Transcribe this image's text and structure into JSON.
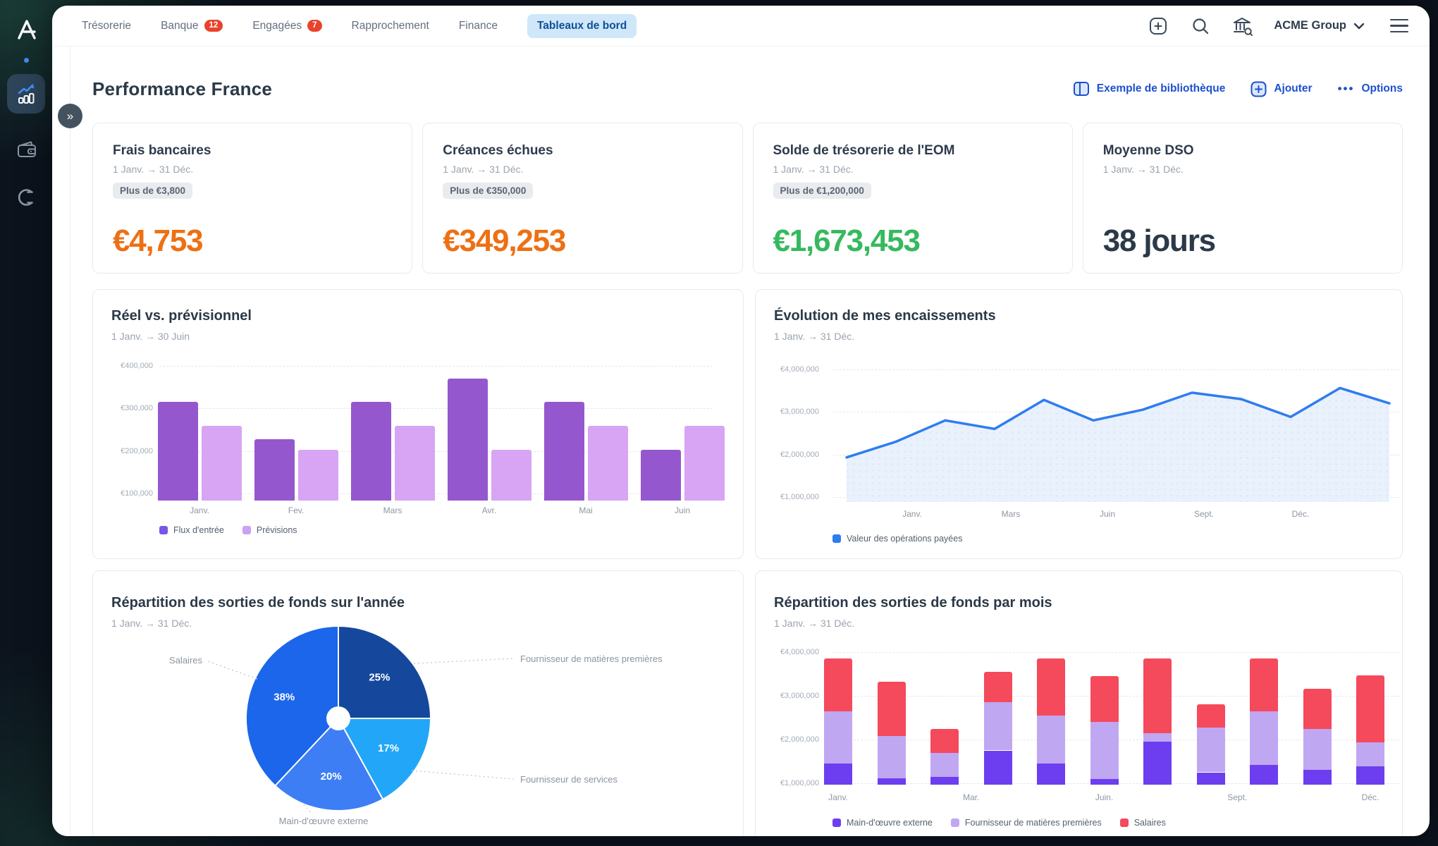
{
  "app": {
    "logo_letter": "A",
    "workspace": "ACME Group",
    "nav_items": [
      {
        "label": "Trésorerie",
        "badge": null,
        "active": false
      },
      {
        "label": "Banque",
        "badge": "12",
        "active": false
      },
      {
        "label": "Engagées",
        "badge": "7",
        "active": false
      },
      {
        "label": "Rapprochement",
        "badge": null,
        "active": false
      },
      {
        "label": "Finance",
        "badge": null,
        "active": false
      },
      {
        "label": "Tableaux de bord",
        "badge": null,
        "active": true
      }
    ]
  },
  "header": {
    "title": "Performance France",
    "library_button": "Exemple de bibliothèque",
    "add_button": "Ajouter",
    "options_button": "Options",
    "collapse_glyph": "»",
    "accent_blue": "#1d50cf"
  },
  "kpis": [
    {
      "title": "Frais bancaires",
      "period": "1 Janv. → 31 Déc.",
      "target": "Plus de €3,800",
      "value": "€4,753",
      "color": "#ed7014"
    },
    {
      "title": "Créances échues",
      "period": "1 Janv. → 31 Déc.",
      "target": "Plus de €350,000",
      "value": "€349,253",
      "color": "#ed7014"
    },
    {
      "title": "Solde de trésorerie de l'EOM",
      "period": "1 Janv. → 31 Déc.",
      "target": "Plus de €1,200,000",
      "value": "€1,673,453",
      "color": "#36b95e"
    },
    {
      "title": "Moyenne DSO",
      "period": "1 Janv. → 31 Déc.",
      "target": null,
      "value": "38 jours",
      "color": "#2b3949"
    }
  ],
  "chart_data": [
    {
      "id": "reel_vs_previsionnel",
      "type": "bar",
      "title": "Réel vs. prévisionnel",
      "period": "1 Janv.  → 30 Juin",
      "categories": [
        "Janv.",
        "Fev.",
        "Mars",
        "Avr.",
        "Mai",
        "Juin"
      ],
      "series": [
        {
          "name": "Flux d'entrée",
          "color": "#9557ce",
          "legend_color": "#7a55e8",
          "values": [
            315000,
            228000,
            315000,
            371000,
            315000,
            203000
          ]
        },
        {
          "name": "Prévisions",
          "color": "#d7a5f4",
          "legend_color": "#c9a2f2",
          "values": [
            260000,
            202000,
            260000,
            202000,
            260000,
            260000
          ]
        }
      ],
      "yticks": [
        100000,
        200000,
        300000,
        400000
      ],
      "ytick_labels": [
        "€100,000",
        "€200,000",
        "€300,000",
        "€400,000"
      ],
      "ylim": [
        83000,
        415000
      ],
      "grid": true,
      "legend_position": "bottom"
    },
    {
      "id": "evolution_encaissements",
      "type": "area",
      "title": "Évolution de mes encaissements",
      "period": "1 Janv. → 31 Déc.",
      "x_labels": [
        "Janv.",
        "Mars",
        "Juin",
        "Sept.",
        "Déc."
      ],
      "series": [
        {
          "name": "Valeur des opérations payées",
          "color": "#2f7cf0",
          "fill": "#e9f1fc",
          "values": [
            1930000,
            2300000,
            2800000,
            2600000,
            3280000,
            2800000,
            3050000,
            3450000,
            3300000,
            2880000,
            3560000,
            3200000
          ]
        }
      ],
      "yticks": [
        1000000,
        2000000,
        3000000,
        4000000
      ],
      "ytick_labels": [
        "€1,000,000",
        "€2,000,000",
        "€3,000,000",
        "€4,000,000"
      ],
      "ylim": [
        900000,
        4200000
      ],
      "grid": true,
      "legend_position": "bottom"
    },
    {
      "id": "repartition_annee",
      "type": "pie",
      "title": "Répartition des sorties de fonds sur l'année",
      "period": "1 Janv. → 31 Déc.",
      "slices": [
        {
          "label": "Fournisseur de matières premières",
          "pct": 25,
          "color": "#15489c"
        },
        {
          "label": "Fournisseur de services",
          "pct": 17,
          "color": "#22a7f8"
        },
        {
          "label": "Main-d'œuvre externe",
          "pct": 20,
          "color": "#3d7ef5"
        },
        {
          "label": "Salaires",
          "pct": 38,
          "color": "#1b66ea"
        }
      ]
    },
    {
      "id": "repartition_mois",
      "type": "stacked_bar",
      "title": "Répartition des sorties de fonds par mois",
      "period": "1 Janv. → 31 Déc.",
      "x_labels": [
        "Janv.",
        "Mar.",
        "Juin.",
        "Sept.",
        "Déc."
      ],
      "series": [
        {
          "name": "Main-d'œuvre externe",
          "color": "#6c3ef0",
          "values": [
            1450000,
            1120000,
            1150000,
            1750000,
            1450000,
            1100000,
            1950000,
            1250000,
            1420000,
            1300000,
            1380000
          ]
        },
        {
          "name": "Fournisseur de matières premières",
          "color": "#c0a7f2",
          "values": [
            1200000,
            960000,
            550000,
            1100000,
            1100000,
            1300000,
            200000,
            1020000,
            1230000,
            950000,
            550000
          ]
        },
        {
          "name": "Salaires",
          "color": "#f5495c",
          "values": [
            1200000,
            1240000,
            550000,
            700000,
            1300000,
            1050000,
            1700000,
            530000,
            1200000,
            920000,
            1540000
          ]
        }
      ],
      "yticks": [
        1000000,
        2000000,
        3000000,
        4000000
      ],
      "ytick_labels": [
        "€1,000,000",
        "€2,000,000",
        "€3,000,000",
        "€4,000,000"
      ],
      "ylim": [
        900000,
        4200000
      ],
      "grid": true,
      "legend_position": "bottom"
    }
  ]
}
